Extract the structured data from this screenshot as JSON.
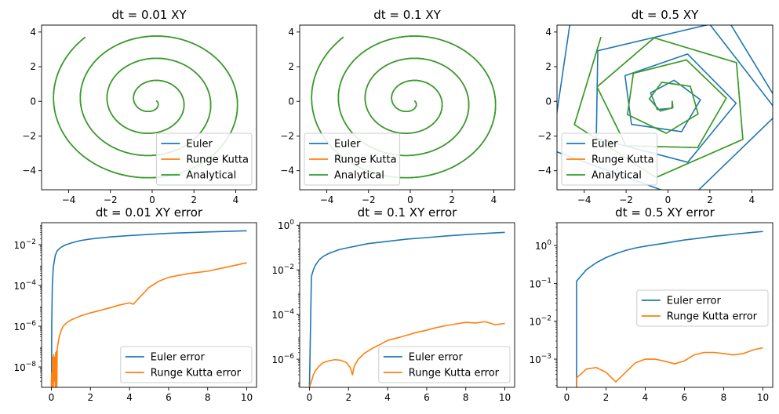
{
  "colors": {
    "euler": "#1f77b4",
    "rk": "#ff7f0e",
    "analytical": "#2ca02c"
  },
  "chart_data": [
    {
      "type": "line",
      "title": "dt = 0.01 XY",
      "xlim": [
        -5.3,
        5.0
      ],
      "ylim": [
        -5.1,
        4.4
      ],
      "xticks": [
        -4,
        -2,
        0,
        2,
        4
      ],
      "yticks": [
        -4,
        -2,
        0,
        2,
        4
      ],
      "legend": "lower-right",
      "series": [
        {
          "name": "Euler",
          "kind": "spiral",
          "dt": 0.01,
          "method": "euler"
        },
        {
          "name": "Runge Kutta",
          "kind": "spiral",
          "dt": 0.01,
          "method": "rk"
        },
        {
          "name": "Analytical",
          "kind": "spiral",
          "dt": 0.01,
          "method": "analytical"
        }
      ]
    },
    {
      "type": "line",
      "title": "dt = 0.1 XY",
      "xlim": [
        -5.3,
        5.0
      ],
      "ylim": [
        -5.1,
        4.4
      ],
      "xticks": [
        -4,
        -2,
        0,
        2,
        4
      ],
      "yticks": [
        -4,
        -2,
        0,
        2,
        4
      ],
      "legend": "lower-left",
      "series": [
        {
          "name": "Euler",
          "kind": "spiral",
          "dt": 0.1,
          "method": "euler"
        },
        {
          "name": "Runge Kutta",
          "kind": "spiral",
          "dt": 0.1,
          "method": "rk"
        },
        {
          "name": "Analytical",
          "kind": "spiral",
          "dt": 0.1,
          "method": "analytical"
        }
      ]
    },
    {
      "type": "line",
      "title": "dt = 0.5 XY",
      "xlim": [
        -5.3,
        5.0
      ],
      "ylim": [
        -5.1,
        4.4
      ],
      "xticks": [
        -4,
        -2,
        0,
        2,
        4
      ],
      "yticks": [
        -4,
        -2,
        0,
        2,
        4
      ],
      "legend": "lower-left",
      "series": [
        {
          "name": "Euler",
          "kind": "spiral",
          "dt": 0.5,
          "method": "euler"
        },
        {
          "name": "Runge Kutta",
          "kind": "spiral",
          "dt": 0.5,
          "method": "rk"
        },
        {
          "name": "Analytical",
          "kind": "spiral",
          "dt": 0.5,
          "method": "analytical"
        }
      ]
    },
    {
      "type": "line",
      "title": "dt = 0.01 XY error",
      "yscale": "log",
      "xlim": [
        -0.5,
        10.5
      ],
      "ylim": [
        1e-09,
        0.12
      ],
      "xticks": [
        0,
        2,
        4,
        6,
        8,
        10
      ],
      "yticks": [
        {
          "v": 1e-08,
          "label": "10",
          "exp": "−8"
        },
        {
          "v": 1e-06,
          "label": "10",
          "exp": "−6"
        },
        {
          "v": 0.0001,
          "label": "10",
          "exp": "−4"
        },
        {
          "v": 0.01,
          "label": "10",
          "exp": "−2"
        }
      ],
      "legend": "lower-right",
      "series": [
        {
          "name": "Euler error",
          "x": [
            0.01,
            0.02,
            0.05,
            0.1,
            0.2,
            0.3,
            0.5,
            0.7,
            1,
            1.5,
            2,
            3,
            4,
            5,
            6,
            7,
            8,
            9,
            10
          ],
          "y": [
            1.5e-09,
            1e-06,
            0.0001,
            0.0008,
            0.003,
            0.005,
            0.0075,
            0.0095,
            0.012,
            0.016,
            0.019,
            0.024,
            0.028,
            0.032,
            0.036,
            0.039,
            0.042,
            0.045,
            0.048
          ]
        },
        {
          "name": "Runge Kutta error",
          "x": [
            0.0,
            0.02,
            0.04,
            0.06,
            0.08,
            0.1,
            0.12,
            0.14,
            0.16,
            0.18,
            0.2,
            0.22,
            0.24,
            0.26,
            0.28,
            0.3,
            0.35,
            0.4,
            0.5,
            0.6,
            0.8,
            1.0,
            1.5,
            2.0,
            2.5,
            3.0,
            3.5,
            4.0,
            4.2,
            4.5,
            5.0,
            5.5,
            6.0,
            7.0,
            8.0,
            9.0,
            10.0
          ],
          "y": [
            1e-09,
            5e-09,
            1e-09,
            3e-08,
            6e-09,
            1e-09,
            4e-08,
            1.5e-08,
            2e-09,
            3e-08,
            1e-09,
            5e-08,
            1e-09,
            6e-08,
            1e-09,
            8e-08,
            1.5e-07,
            3e-07,
            6e-07,
            1e-06,
            1.5e-06,
            2e-06,
            3.2e-06,
            4.5e-06,
            6e-06,
            8e-06,
            1.1e-05,
            1.4e-05,
            1.2e-05,
            2.5e-05,
            8e-05,
            0.00016,
            0.00025,
            0.00038,
            0.0005,
            0.0008,
            0.0013
          ]
        }
      ]
    },
    {
      "type": "line",
      "title": "dt = 0.1 XY error",
      "yscale": "log",
      "xlim": [
        -0.5,
        10.5
      ],
      "ylim": [
        5.5e-08,
        1.3
      ],
      "xticks": [
        0,
        2,
        4,
        6,
        8,
        10
      ],
      "yticks": [
        {
          "v": 1e-06,
          "label": "10",
          "exp": "−6"
        },
        {
          "v": 0.0001,
          "label": "10",
          "exp": "−4"
        },
        {
          "v": 0.01,
          "label": "10",
          "exp": "−2"
        },
        {
          "v": 1,
          "label": "10",
          "exp": "0"
        }
      ],
      "legend": "lower-right",
      "series": [
        {
          "name": "Euler error",
          "x": [
            0.0,
            0.1,
            0.2,
            0.3,
            0.5,
            0.7,
            1,
            1.5,
            2,
            3,
            4,
            5,
            6,
            7,
            8,
            9,
            10
          ],
          "y": [
            5.5e-08,
            0.005,
            0.01,
            0.016,
            0.028,
            0.04,
            0.055,
            0.08,
            0.1,
            0.15,
            0.19,
            0.24,
            0.28,
            0.33,
            0.38,
            0.43,
            0.48
          ]
        },
        {
          "name": "Runge Kutta error",
          "x": [
            0.0,
            0.1,
            0.2,
            0.3,
            0.5,
            0.7,
            1.0,
            1.3,
            1.6,
            1.9,
            2.1,
            2.2,
            2.3,
            2.5,
            2.8,
            3.2,
            3.6,
            4.0,
            4.5,
            5.0,
            5.5,
            6.0,
            6.5,
            7.0,
            7.5,
            8.0,
            8.5,
            9.0,
            9.5,
            10.0
          ],
          "y": [
            5.5e-08,
            1e-07,
            2e-07,
            3e-07,
            5e-07,
            7e-07,
            8.5e-07,
            9.5e-07,
            9e-07,
            7e-07,
            4e-07,
            2e-07,
            5e-07,
            1e-06,
            1.8e-06,
            3e-06,
            4.5e-06,
            7e-06,
            9e-06,
            1.2e-05,
            1.6e-05,
            2e-05,
            2.6e-05,
            3.2e-05,
            3.8e-05,
            4.5e-05,
            4.2e-05,
            4.8e-05,
            3.5e-05,
            4e-05
          ]
        }
      ]
    },
    {
      "type": "line",
      "title": "dt = 0.5 XY error",
      "yscale": "log",
      "xlim": [
        -0.5,
        10.5
      ],
      "ylim": [
        0.00018,
        4
      ],
      "xticks": [
        0,
        2,
        4,
        6,
        8,
        10
      ],
      "yticks": [
        {
          "v": 0.001,
          "label": "10",
          "exp": "−3"
        },
        {
          "v": 0.01,
          "label": "10",
          "exp": "−2"
        },
        {
          "v": 0.1,
          "label": "10",
          "exp": "−1"
        },
        {
          "v": 1,
          "label": "10",
          "exp": "0"
        }
      ],
      "legend": "center-right",
      "series": [
        {
          "name": "Euler error",
          "x": [
            0.5,
            0.5,
            1.0,
            1.5,
            2.0,
            2.5,
            3.0,
            3.5,
            4.0,
            4.5,
            5.0,
            5.5,
            6.0,
            6.5,
            7.0,
            7.5,
            8.0,
            8.5,
            9.0,
            9.5,
            10.0
          ],
          "y": [
            0.00018,
            0.115,
            0.23,
            0.35,
            0.48,
            0.61,
            0.74,
            0.86,
            0.96,
            1.05,
            1.15,
            1.27,
            1.4,
            1.5,
            1.62,
            1.75,
            1.85,
            1.98,
            2.1,
            2.22,
            2.35
          ]
        },
        {
          "name": "Runge Kutta error",
          "x": [
            0.5,
            0.5,
            1.0,
            1.5,
            2.0,
            2.5,
            3.0,
            3.5,
            4.0,
            4.5,
            5.0,
            5.5,
            6.0,
            6.5,
            7.0,
            7.5,
            8.0,
            8.5,
            9.0,
            9.5,
            10.0
          ],
          "y": [
            0.00018,
            0.00032,
            0.00055,
            0.0006,
            0.00045,
            0.00025,
            0.00045,
            0.0008,
            0.001,
            0.001,
            0.00088,
            0.00075,
            0.0009,
            0.0013,
            0.0015,
            0.0015,
            0.0014,
            0.0013,
            0.0014,
            0.00175,
            0.002
          ]
        }
      ]
    }
  ]
}
